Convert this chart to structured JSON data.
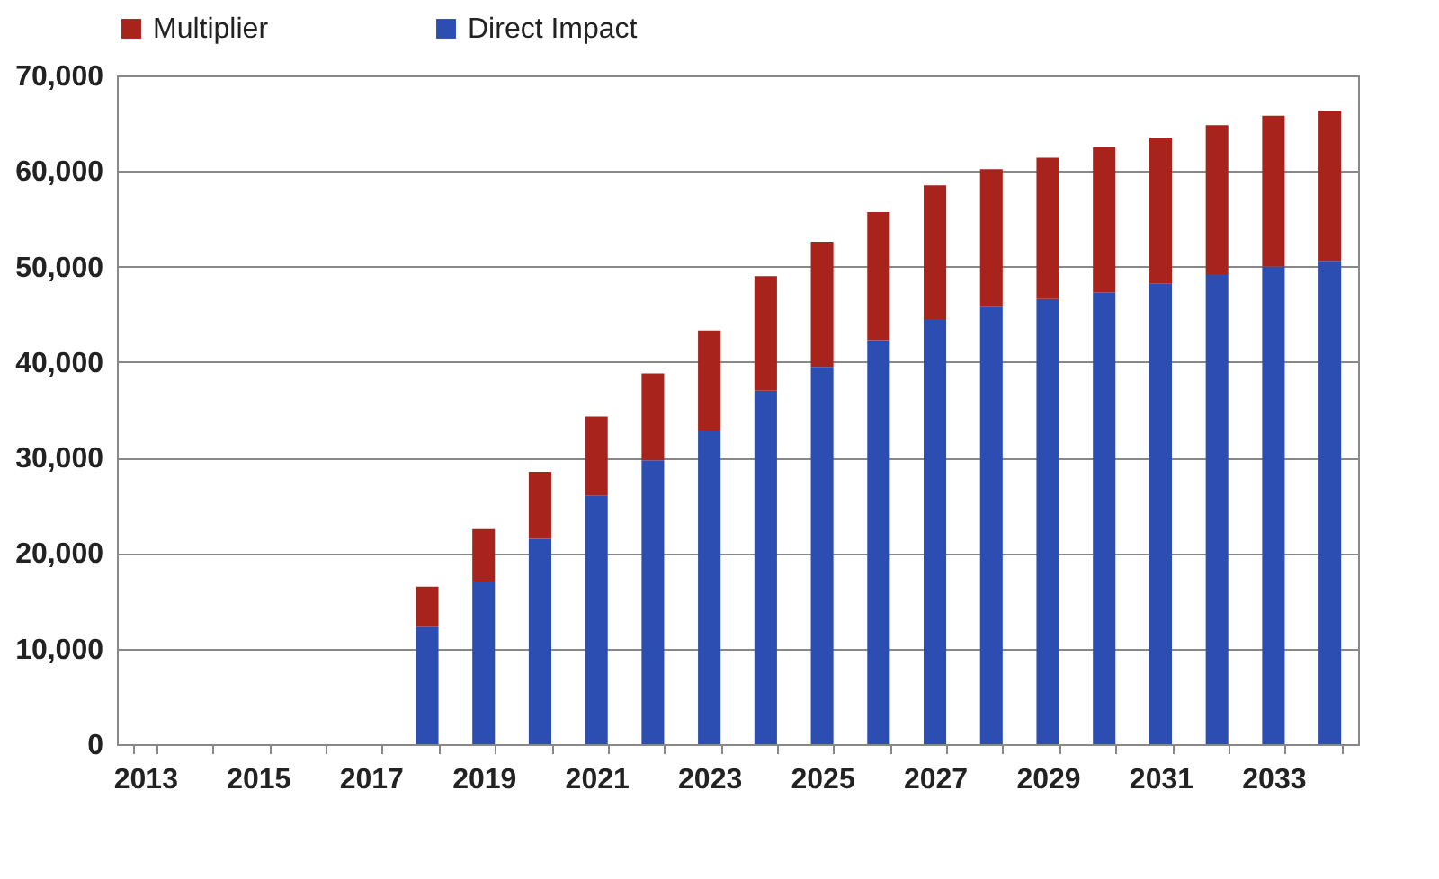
{
  "chart_data": {
    "type": "bar",
    "stacked": true,
    "categories": [
      "2013",
      null,
      "2015",
      null,
      "2017",
      null,
      "2019",
      null,
      "2021",
      null,
      "2023",
      null,
      "2025",
      null,
      "2027",
      null,
      "2029",
      null,
      "2031",
      null,
      "2033",
      null
    ],
    "series": [
      {
        "name": "Direct Impact",
        "color": "#2c4eb2",
        "values": [
          null,
          null,
          null,
          null,
          null,
          12300,
          17000,
          21500,
          26000,
          29700,
          32800,
          37000,
          39500,
          42300,
          44500,
          45800,
          46600,
          47300,
          48200,
          49200,
          50000,
          50600
        ]
      },
      {
        "name": "Multiplier",
        "color": "#a8231c",
        "values": [
          null,
          null,
          null,
          null,
          null,
          4200,
          5500,
          7000,
          8300,
          9100,
          10500,
          12000,
          13100,
          13400,
          14000,
          14400,
          14800,
          15200,
          15300,
          15600,
          15800,
          15700
        ]
      }
    ],
    "ylim": [
      0,
      70000
    ],
    "yticks": [
      0,
      {
        "value": 10000,
        "label": "10,000"
      },
      {
        "value": 20000,
        "label": "20,000"
      },
      {
        "value": 30000,
        "label": "30,000"
      },
      {
        "value": 40000,
        "label": "40,000"
      },
      {
        "value": 50000,
        "label": "50,000"
      },
      {
        "value": 60000,
        "label": "60,000"
      },
      {
        "value": 70000,
        "label": "70,000"
      }
    ],
    "grid": "y",
    "legend": "top"
  }
}
